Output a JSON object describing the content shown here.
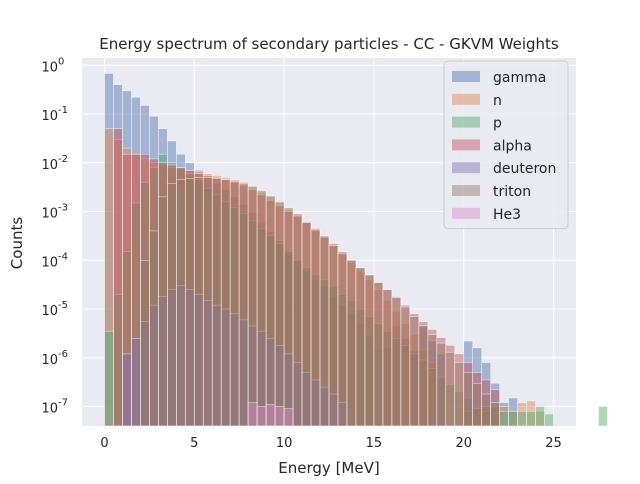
{
  "chart_data": {
    "type": "bar",
    "title": "Energy spectrum of secondary particles - CC - GKVM Weights",
    "xlabel": "Energy [MeV]",
    "ylabel": "Counts",
    "xlim": [
      -1.25,
      26.25
    ],
    "ylim_log10": [
      -7.4,
      0.15
    ],
    "yscale": "log",
    "bin_width": 0.5,
    "x_ticks": [
      {
        "value": 0,
        "label": "0"
      },
      {
        "value": 5,
        "label": "5"
      },
      {
        "value": 10,
        "label": "10"
      },
      {
        "value": 15,
        "label": "15"
      },
      {
        "value": 20,
        "label": "20"
      },
      {
        "value": 25,
        "label": "25"
      }
    ],
    "y_ticks": [
      {
        "exp": 0,
        "label": "10^0"
      },
      {
        "exp": -1,
        "label": "10^-1"
      },
      {
        "exp": -2,
        "label": "10^-2"
      },
      {
        "exp": -3,
        "label": "10^-3"
      },
      {
        "exp": -4,
        "label": "10^-4"
      },
      {
        "exp": -5,
        "label": "10^-5"
      },
      {
        "exp": -6,
        "label": "10^-6"
      },
      {
        "exp": -7,
        "label": "10^-7"
      }
    ],
    "grid": true,
    "legend_position": "top-right",
    "series": [
      {
        "name": "gamma",
        "color": "#4c72b0",
        "bins_start": 0,
        "values": [
          0.68,
          0.4,
          0.3,
          0.22,
          0.15,
          0.09,
          0.05,
          0.028,
          0.015,
          0.01,
          0.007,
          0.005,
          0.0038,
          0.0028,
          0.002,
          0.0014,
          0.00095,
          0.0006,
          0.00038,
          0.00025,
          0.00016,
          0.0001,
          6e-05,
          4e-05,
          3e-05,
          1.8e-05,
          1.2e-05,
          8e-06,
          5e-06,
          2.8e-06,
          1.5e-06,
          1.6e-06,
          4.5e-06,
          2.5e-06,
          1.4e-06,
          4.5e-06,
          2.2e-06,
          1.2e-06,
          0,
          0,
          2.2e-06,
          1.6e-06,
          8e-07,
          3e-07,
          1.2e-07,
          1.5e-07
        ]
      },
      {
        "name": "n",
        "color": "#dd8452",
        "bins_start": 0,
        "values": [
          0.05,
          0.03,
          0.02,
          0.015,
          0.012,
          0.01,
          0.009,
          0.008,
          0.0075,
          0.007,
          0.0065,
          0.006,
          0.0055,
          0.005,
          0.0045,
          0.004,
          0.0032,
          0.0025,
          0.002,
          0.0015,
          0.0011,
          0.0008,
          0.0006,
          0.0004,
          0.0003,
          0.0002,
          0.00013,
          9e-05,
          6e-05,
          4e-05,
          2.5e-05,
          1.5e-05,
          9e-06,
          5e-06,
          3e-06,
          1.5e-06,
          8e-07,
          0,
          0,
          0,
          8e-08,
          9e-08,
          8e-08,
          7e-08,
          1e-07,
          8e-08,
          1.2e-07,
          1.3e-07,
          8e-08
        ]
      },
      {
        "name": "p",
        "color": "#55a868",
        "bins_start": 0,
        "values": [
          3.5e-06,
          2e-05,
          0.00015,
          0.0015,
          0.004,
          0.008,
          0.015,
          0.01,
          0.008,
          0.006,
          0.0045,
          0.003,
          0.0022,
          0.0016,
          0.0012,
          0.0009,
          0.00065,
          0.00045,
          0.00032,
          0.00022,
          0.00015,
          0.0001,
          7e-05,
          5e-05,
          4e-05,
          3e-05,
          2e-05,
          1.5e-05,
          1e-05,
          7e-06,
          5e-06,
          3.5e-06,
          2.5e-06,
          1.8e-06,
          1.2e-06,
          9e-07,
          6e-07,
          4e-07,
          2.8e-07,
          2e-07,
          1.5e-07,
          9e-08,
          1e-07,
          1e-07,
          8e-08,
          8e-08,
          8e-08,
          8e-08,
          1e-07,
          7e-08,
          0,
          0,
          0,
          0,
          0,
          1e-07
        ]
      },
      {
        "name": "alpha",
        "color": "#c44e52",
        "bins_start": 0,
        "values": [
          0,
          0.05,
          0.015,
          0.015,
          0.015,
          0.012,
          0.01,
          0.009,
          0.008,
          0.007,
          0.006,
          0.0055,
          0.005,
          0.0045,
          0.004,
          0.0035,
          0.0028,
          0.0022,
          0.0017,
          0.0013,
          0.001,
          0.0008,
          0.0006,
          0.00045,
          0.00032,
          0.00022,
          0.00015,
          0.0001,
          7e-05,
          5e-05,
          3.5e-05,
          2.5e-05,
          1.8e-05,
          1.2e-05,
          8e-06,
          5.5e-06,
          3.8e-06,
          2.6e-06,
          1.8e-06,
          1.2e-06,
          8e-07,
          5e-07,
          3.5e-07,
          2.2e-07
        ]
      },
      {
        "name": "deuteron",
        "color": "#8172b3",
        "bins_start": 0,
        "values": [
          0,
          0,
          1.2e-06,
          2.5e-06,
          5.5e-06,
          1.2e-05,
          1.8e-05,
          2.5e-05,
          3e-05,
          2.5e-05,
          2e-05,
          1.5e-05,
          1.2e-05,
          1e-05,
          8e-06,
          6e-06,
          4.5e-06,
          3.5e-06,
          2.5e-06,
          1.8e-06,
          1.2e-06,
          8e-07,
          5e-07,
          3.5e-07,
          2.5e-07,
          1.8e-07,
          1.2e-07
        ]
      },
      {
        "name": "triton",
        "color": "#937860",
        "bins_start": 0,
        "values": [
          0,
          0,
          0,
          0,
          0.0001,
          0.0004,
          0.002,
          0.0038,
          0.0045,
          0.0048,
          0.005,
          0.005,
          0.0048,
          0.0045,
          0.0042,
          0.0038,
          0.0033,
          0.0027,
          0.0021,
          0.0016,
          0.0012,
          0.0009,
          0.0006,
          0.00042,
          0.0003,
          0.0002,
          0.00014,
          0.0001,
          7e-05,
          5e-05,
          3.5e-05,
          2.5e-05,
          1.7e-05,
          1.1e-05,
          7e-06,
          4.5e-06,
          3e-06,
          2e-06,
          1.3e-06,
          8e-07,
          5e-07,
          3e-07,
          1.8e-07,
          1.2e-07
        ]
      },
      {
        "name": "He3",
        "color": "#da8bc3",
        "bins_start": 0,
        "values": [
          0,
          0,
          0,
          0,
          0,
          0,
          0,
          0,
          0,
          0,
          0,
          0,
          0,
          0,
          0,
          0,
          1.2e-07,
          1e-07,
          1.1e-07,
          1e-07,
          9e-08
        ]
      }
    ]
  }
}
